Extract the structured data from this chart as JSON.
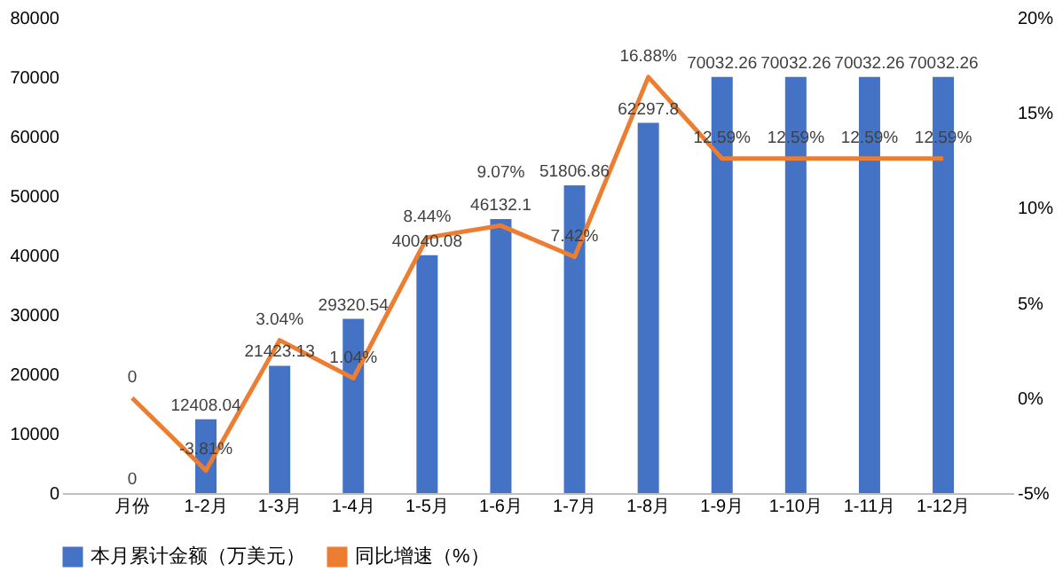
{
  "chart_data": {
    "type": "bar",
    "categories": [
      "月份",
      "1-2月",
      "1-3月",
      "1-4月",
      "1-5月",
      "1-6月",
      "1-7月",
      "1-8月",
      "1-9月",
      "1-10月",
      "1-11月",
      "1-12月"
    ],
    "series": [
      {
        "name": "本月累计金额（万美元）",
        "type": "bar",
        "color": "#4472c4",
        "values": [
          0,
          12408.04,
          21423.13,
          29320.54,
          40040.08,
          46132.1,
          51806.86,
          62297.8,
          70032.26,
          70032.26,
          70032.26,
          70032.26
        ],
        "value_labels": [
          "0",
          "12408.04",
          "21423.13",
          "29320.54",
          "40040.08",
          "46132.1",
          "51806.86",
          "62297.8",
          "70032.26",
          "70032.26",
          "70032.26",
          "70032.26"
        ]
      },
      {
        "name": "同比增速（%）",
        "type": "line",
        "axis": "y2",
        "color": "#ed7d31",
        "values": [
          0,
          -3.81,
          3.04,
          1.04,
          8.44,
          9.07,
          7.42,
          16.88,
          12.59,
          12.59,
          12.59,
          12.59
        ],
        "value_labels": [
          "0",
          "-3.81%",
          "3.04%",
          "1.04%",
          "8.44%",
          "9.07%",
          "7.42%",
          "16.88%",
          "12.59%",
          "12.59%",
          "12.59%",
          "12.59%"
        ]
      }
    ],
    "ylim": [
      0,
      80000
    ],
    "yticks": [
      0,
      10000,
      20000,
      30000,
      40000,
      50000,
      60000,
      70000,
      80000
    ],
    "y2lim": [
      -5,
      20
    ],
    "y2ticks": [
      {
        "value": -5,
        "label": "-5%"
      },
      {
        "value": 0,
        "label": "0%"
      },
      {
        "value": 5,
        "label": "5%"
      },
      {
        "value": 10,
        "label": "10%"
      },
      {
        "value": 15,
        "label": "15%"
      },
      {
        "value": 20,
        "label": "20%"
      }
    ],
    "legend": "bottom",
    "grid": false,
    "marker": "none",
    "line_style": "solid"
  }
}
